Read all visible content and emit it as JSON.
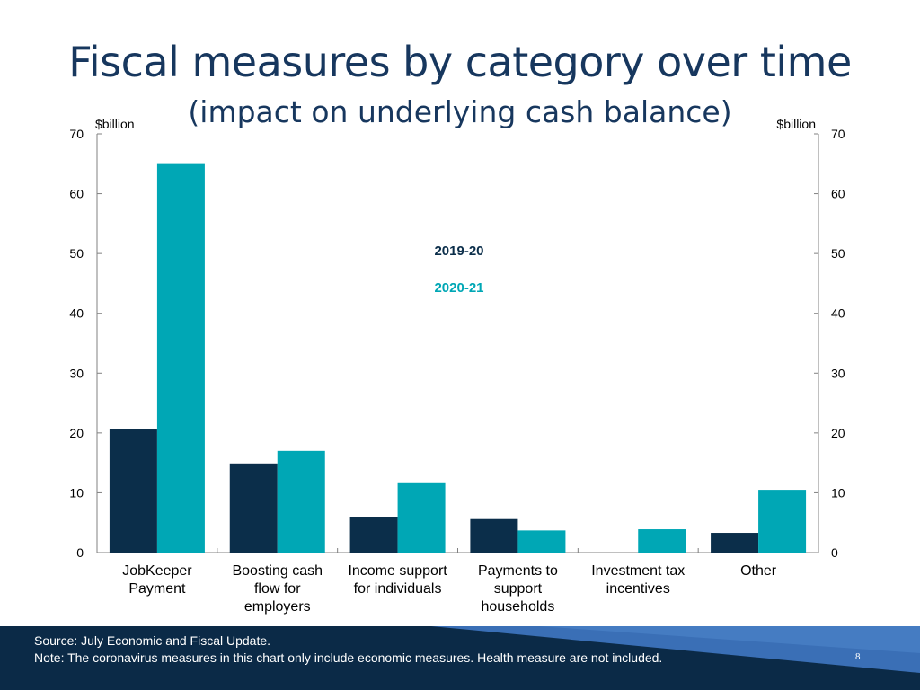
{
  "slide": {
    "title": "Fiscal measures by category over time",
    "subtitle": "(impact on underlying cash balance)",
    "source": "Source: July Economic and Fiscal Update.",
    "note": "Note: The coronavirus measures in this chart only include economic measures. Health measure are not included.",
    "page_number": "8"
  },
  "chart_data": {
    "type": "bar",
    "categories": [
      [
        "JobKeeper",
        "Payment"
      ],
      [
        "Boosting cash",
        "flow for",
        "employers"
      ],
      [
        "Income support",
        "for individuals"
      ],
      [
        "Payments to",
        "support",
        "households"
      ],
      [
        "Investment tax",
        "incentives"
      ],
      [
        "Other"
      ]
    ],
    "series": [
      {
        "name": "2019-20",
        "color": "#0b2e4a",
        "values": [
          20.6,
          14.9,
          5.9,
          5.6,
          0,
          3.3
        ]
      },
      {
        "name": "2020-21",
        "color": "#00a7b5",
        "values": [
          65.1,
          17.0,
          11.6,
          3.7,
          3.9,
          10.5
        ]
      }
    ],
    "ylabel_left": "$billion",
    "ylabel_right": "$billion",
    "ylim": [
      0,
      70
    ],
    "yticks": [
      0,
      10,
      20,
      30,
      40,
      50,
      60,
      70
    ],
    "grid": false,
    "legend_position": "center"
  }
}
